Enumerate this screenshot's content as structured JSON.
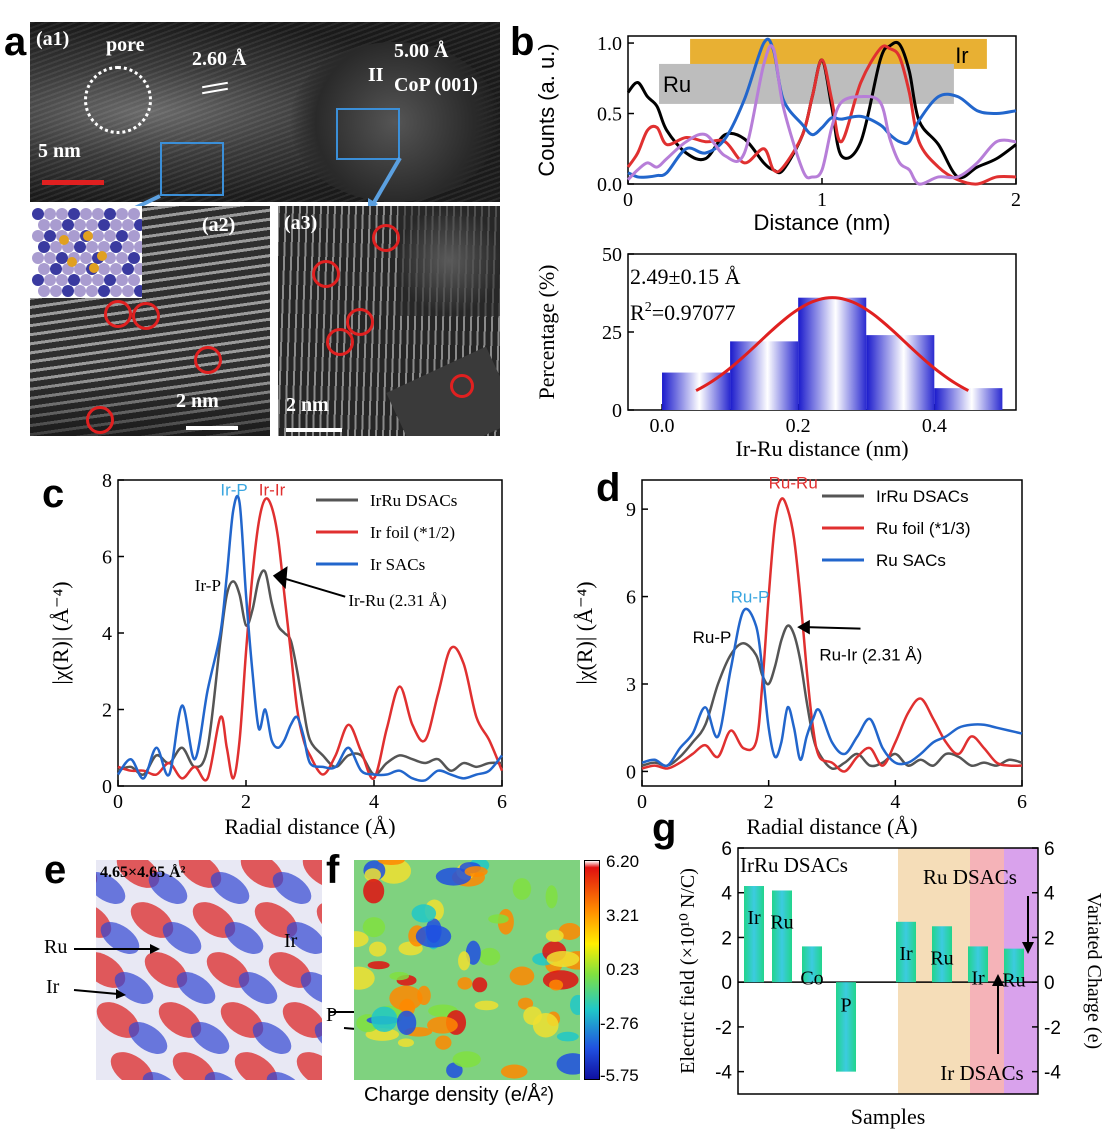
{
  "panel_labels": {
    "a": "a",
    "b": "b",
    "c": "c",
    "d": "d",
    "e": "e",
    "f": "f",
    "g": "g"
  },
  "panel_a": {
    "a1_label": "(a1)",
    "a2_label": "(a2)",
    "a3_label": "(a3)",
    "pore": "pore",
    "spacing1": "2.60 Å",
    "spacing2": "5.00 Å",
    "plane": "CoP (001)",
    "scale1": "5 nm",
    "scale2": "2 nm",
    "scale3": "2 nm",
    "spacing2_marker": "II"
  },
  "chart_data": [
    {
      "id": "b-top",
      "type": "line",
      "xlabel": "Distance (nm)",
      "ylabel": "Counts (a. u.)",
      "xlim": [
        0,
        2
      ],
      "ylim": [
        0,
        1.05
      ],
      "xticks": [
        "0",
        "1",
        "2"
      ],
      "yticks": [
        "0.0",
        "0.5",
        "1.0"
      ],
      "bars": [
        {
          "label": "Ir",
          "x0": 0.32,
          "x1": 1.85,
          "y": 0.93,
          "color": "#e8b033"
        },
        {
          "label": "Ru",
          "x0": 0.16,
          "x1": 1.68,
          "y": 0.71,
          "color": "#bdbdbd"
        }
      ],
      "series": [
        {
          "color": "#000000",
          "x": [
            0,
            0.05,
            0.1,
            0.15,
            0.2,
            0.3,
            0.4,
            0.5,
            0.6,
            0.7,
            0.75,
            0.8,
            0.9,
            0.95,
            1.0,
            1.05,
            1.1,
            1.2,
            1.3,
            1.35,
            1.4,
            1.45,
            1.5,
            1.6,
            1.7,
            1.8,
            1.9,
            2.0
          ],
          "y": [
            0.65,
            0.72,
            0.62,
            0.55,
            0.38,
            0.22,
            0.18,
            0.35,
            0.32,
            0.15,
            0.1,
            0.1,
            0.35,
            0.62,
            0.88,
            0.55,
            0.2,
            0.3,
            0.88,
            0.98,
            0.99,
            0.8,
            0.45,
            0.28,
            0.05,
            0.12,
            0.18,
            0.28
          ]
        },
        {
          "color": "#e03030",
          "x": [
            0,
            0.05,
            0.1,
            0.15,
            0.2,
            0.3,
            0.4,
            0.5,
            0.6,
            0.7,
            0.75,
            0.8,
            0.9,
            0.95,
            1.0,
            1.05,
            1.1,
            1.2,
            1.3,
            1.35,
            1.4,
            1.45,
            1.5,
            1.6,
            1.7,
            1.8,
            1.9,
            2.0
          ],
          "y": [
            0.12,
            0.22,
            0.38,
            0.4,
            0.28,
            0.33,
            0.3,
            0.3,
            0.15,
            0.25,
            0.1,
            0.12,
            0.35,
            0.62,
            0.88,
            0.6,
            0.3,
            0.72,
            0.96,
            0.96,
            0.9,
            0.65,
            0.3,
            0.12,
            0.03,
            0.0,
            0.05,
            0.05
          ]
        },
        {
          "color": "#2266cc",
          "x": [
            0,
            0.05,
            0.1,
            0.15,
            0.2,
            0.3,
            0.4,
            0.5,
            0.6,
            0.7,
            0.75,
            0.8,
            0.9,
            0.95,
            1.0,
            1.05,
            1.1,
            1.2,
            1.3,
            1.35,
            1.4,
            1.45,
            1.5,
            1.6,
            1.7,
            1.8,
            1.9,
            2.0
          ],
          "y": [
            0.08,
            0.05,
            0.05,
            0.06,
            0.08,
            0.25,
            0.22,
            0.32,
            0.6,
            1.0,
            0.95,
            0.6,
            0.42,
            0.35,
            0.4,
            0.47,
            0.46,
            0.48,
            0.42,
            0.35,
            0.3,
            0.3,
            0.45,
            0.62,
            0.62,
            0.52,
            0.5,
            0.52
          ]
        },
        {
          "color": "#b77ed8",
          "x": [
            0,
            0.05,
            0.1,
            0.15,
            0.2,
            0.3,
            0.4,
            0.5,
            0.6,
            0.7,
            0.75,
            0.8,
            0.9,
            0.95,
            1.0,
            1.05,
            1.1,
            1.2,
            1.3,
            1.35,
            1.4,
            1.45,
            1.5,
            1.6,
            1.7,
            1.8,
            1.9,
            2.0
          ],
          "y": [
            0.03,
            0.1,
            0.15,
            0.12,
            0.18,
            0.3,
            0.35,
            0.2,
            0.22,
            0.85,
            0.96,
            0.55,
            0.1,
            0.05,
            0.1,
            0.4,
            0.58,
            0.62,
            0.58,
            0.32,
            0.15,
            0.1,
            0.0,
            0.05,
            0.05,
            0.15,
            0.3,
            0.3
          ]
        }
      ]
    },
    {
      "id": "b-bottom",
      "type": "bar",
      "xlabel": "Ir-Ru distance (nm)",
      "ylabel": "Percentage (%)",
      "xlim": [
        -0.05,
        0.52
      ],
      "ylim": [
        0,
        50
      ],
      "xticks": [
        "0.0",
        "0.2",
        "0.4"
      ],
      "yticks": [
        "0",
        "25",
        "50"
      ],
      "annotation1": "2.49±0.15 Å",
      "annotation2_prefix": "R",
      "annotation2_sup": "2",
      "annotation2_suffix": "=0.97077",
      "bars": [
        {
          "x": 0.0,
          "y": 12
        },
        {
          "x": 0.1,
          "y": 22
        },
        {
          "x": 0.2,
          "y": 36
        },
        {
          "x": 0.3,
          "y": 24
        },
        {
          "x": 0.4,
          "y": 7
        }
      ],
      "bar_width": 0.1,
      "fit": {
        "mean": 0.25,
        "peak": 36,
        "sigma": 0.135,
        "from": 0.05,
        "to": 0.45,
        "color": "#e02020"
      }
    },
    {
      "id": "c",
      "type": "line",
      "xlabel": "Radial distance (Å)",
      "ylabel": "|χ(R)| (Å⁻⁴)",
      "xlim": [
        0,
        6
      ],
      "ylim": [
        0,
        8
      ],
      "xticks": [
        "0",
        "2",
        "4",
        "6"
      ],
      "yticks": [
        "0",
        "2",
        "4",
        "6",
        "8"
      ],
      "series": [
        {
          "name": "IrRu DSACs",
          "color": "#555555",
          "x": [
            0,
            0.2,
            0.4,
            0.6,
            0.8,
            1.0,
            1.2,
            1.4,
            1.6,
            1.7,
            1.8,
            1.9,
            2.0,
            2.1,
            2.2,
            2.3,
            2.4,
            2.5,
            2.6,
            2.7,
            2.8,
            2.9,
            3.0,
            3.2,
            3.4,
            3.6,
            3.8,
            4.0,
            4.2,
            4.4,
            4.6,
            4.8,
            5.0,
            5.2,
            5.4,
            5.6,
            5.8,
            6.0
          ],
          "y": [
            0.4,
            0.5,
            0.3,
            0.8,
            0.6,
            1.0,
            0.5,
            1.0,
            3.8,
            5.0,
            5.35,
            5.0,
            4.2,
            4.6,
            5.4,
            5.6,
            4.8,
            4.2,
            4.0,
            3.8,
            3.0,
            2.0,
            1.2,
            0.8,
            0.5,
            0.8,
            0.8,
            0.3,
            0.6,
            0.8,
            0.7,
            0.6,
            0.7,
            0.4,
            0.6,
            0.5,
            0.6,
            0.6
          ]
        },
        {
          "name": "Ir foil (*1/2)",
          "color": "#e03030",
          "x": [
            0,
            0.2,
            0.4,
            0.6,
            0.8,
            1.0,
            1.2,
            1.4,
            1.6,
            1.7,
            1.8,
            1.9,
            2.0,
            2.1,
            2.2,
            2.3,
            2.4,
            2.5,
            2.6,
            2.7,
            2.8,
            2.9,
            3.0,
            3.2,
            3.4,
            3.6,
            3.8,
            4.0,
            4.2,
            4.4,
            4.6,
            4.8,
            5.0,
            5.2,
            5.4,
            5.6,
            5.8,
            6.0
          ],
          "y": [
            0.5,
            0.4,
            0.4,
            0.3,
            0.6,
            0.2,
            0.5,
            0.2,
            1.8,
            1.0,
            0.2,
            1.2,
            3.5,
            5.5,
            6.9,
            7.5,
            7.3,
            6.5,
            5.0,
            3.5,
            2.0,
            1.2,
            0.8,
            0.3,
            0.8,
            1.6,
            0.9,
            0.2,
            1.5,
            2.6,
            1.6,
            1.2,
            2.4,
            3.6,
            3.2,
            1.8,
            1.2,
            0.4
          ]
        },
        {
          "name": "Ir SACs",
          "color": "#2266cc",
          "x": [
            0,
            0.2,
            0.4,
            0.6,
            0.8,
            1.0,
            1.2,
            1.4,
            1.6,
            1.7,
            1.8,
            1.9,
            2.0,
            2.1,
            2.2,
            2.3,
            2.4,
            2.5,
            2.6,
            2.7,
            2.8,
            2.9,
            3.0,
            3.2,
            3.4,
            3.6,
            3.8,
            4.0,
            4.2,
            4.4,
            4.6,
            4.8,
            5.0,
            5.2,
            5.4,
            5.6,
            5.8,
            6.0
          ],
          "y": [
            0.3,
            0.7,
            0.2,
            1.0,
            0.3,
            2.1,
            0.7,
            2.5,
            4.0,
            5.5,
            7.2,
            7.4,
            5.0,
            3.0,
            1.5,
            2.0,
            1.2,
            1.0,
            1.2,
            1.6,
            1.8,
            1.3,
            0.6,
            0.5,
            0.5,
            1.0,
            0.4,
            0.3,
            0.3,
            0.4,
            0.2,
            0.15,
            0.4,
            0.3,
            0.2,
            0.3,
            0.4,
            0.8
          ]
        }
      ],
      "annotations": {
        "ir_p_blue": "Ir-P",
        "ir_ir": "Ir-Ir",
        "ir_p_black": "Ir-P",
        "ir_ru": "Ir-Ru (2.31 Å)"
      }
    },
    {
      "id": "d",
      "type": "line",
      "xlabel": "Radial distance (Å)",
      "ylabel": "|χ(R)| (Å⁻⁴)",
      "xlim": [
        0,
        6
      ],
      "ylim": [
        -0.5,
        10
      ],
      "xticks": [
        "0",
        "2",
        "4",
        "6"
      ],
      "yticks": [
        "0",
        "3",
        "6",
        "9"
      ],
      "series": [
        {
          "name": "IrRu DSACs",
          "color": "#555555",
          "x": [
            0,
            0.2,
            0.4,
            0.6,
            0.8,
            1.0,
            1.2,
            1.4,
            1.6,
            1.8,
            1.9,
            2.0,
            2.1,
            2.2,
            2.3,
            2.4,
            2.5,
            2.6,
            2.7,
            2.8,
            3.0,
            3.2,
            3.4,
            3.6,
            3.8,
            4.0,
            4.2,
            4.4,
            4.6,
            4.8,
            5.0,
            5.2,
            5.4,
            5.6,
            5.8,
            6.0
          ],
          "y": [
            0.2,
            0.3,
            0.2,
            0.5,
            1.0,
            1.6,
            3.0,
            4.0,
            4.4,
            4.0,
            3.3,
            3.0,
            3.6,
            4.5,
            5.0,
            4.7,
            3.8,
            2.4,
            1.2,
            0.6,
            0.1,
            0.3,
            0.6,
            0.2,
            0.3,
            0.6,
            0.2,
            0.4,
            0.2,
            0.6,
            0.5,
            0.2,
            0.3,
            0.2,
            0.4,
            0.3
          ]
        },
        {
          "name": "Ru foil (*1/3)",
          "color": "#e03030",
          "x": [
            0,
            0.2,
            0.4,
            0.6,
            0.8,
            1.0,
            1.2,
            1.4,
            1.6,
            1.8,
            1.9,
            2.0,
            2.1,
            2.2,
            2.3,
            2.4,
            2.5,
            2.6,
            2.7,
            2.8,
            3.0,
            3.2,
            3.4,
            3.6,
            3.8,
            4.0,
            4.2,
            4.4,
            4.6,
            4.8,
            5.0,
            5.2,
            5.4,
            5.6,
            5.8,
            6.0
          ],
          "y": [
            0.1,
            0.2,
            0.1,
            0.3,
            0.6,
            0.9,
            0.5,
            1.4,
            0.8,
            1.0,
            3.0,
            6.0,
            8.5,
            9.35,
            9.0,
            8.0,
            6.0,
            3.5,
            1.5,
            0.5,
            0.3,
            0.0,
            0.5,
            0.8,
            0.2,
            1.0,
            2.0,
            2.5,
            1.8,
            1.0,
            0.6,
            1.2,
            0.8,
            0.3,
            0.2,
            0.2
          ]
        },
        {
          "name": "Ru SACs",
          "color": "#2266cc",
          "x": [
            0,
            0.2,
            0.4,
            0.6,
            0.8,
            1.0,
            1.2,
            1.4,
            1.6,
            1.8,
            1.9,
            2.0,
            2.1,
            2.2,
            2.3,
            2.4,
            2.5,
            2.6,
            2.7,
            2.8,
            3.0,
            3.2,
            3.4,
            3.6,
            3.8,
            4.0,
            4.2,
            4.4,
            4.6,
            4.8,
            5.0,
            5.2,
            5.4,
            5.6,
            5.8,
            6.0
          ],
          "y": [
            0.3,
            0.4,
            0.2,
            0.8,
            1.3,
            2.2,
            1.2,
            3.5,
            5.5,
            5.0,
            3.5,
            1.5,
            0.5,
            1.0,
            2.2,
            1.5,
            0.4,
            1.2,
            1.8,
            2.1,
            1.0,
            0.6,
            1.2,
            1.8,
            0.8,
            0.3,
            0.3,
            0.6,
            1.0,
            1.2,
            1.5,
            1.6,
            1.6,
            1.5,
            1.4,
            1.3
          ]
        }
      ],
      "annotations": {
        "ru_ru": "Ru-Ru",
        "ru_p_blue": "Ru-P",
        "ru_p_black": "Ru-P",
        "ru_ir": "Ru-Ir (2.31 Å)"
      }
    },
    {
      "id": "g",
      "type": "bar",
      "xlabel": "Samples",
      "ylabel": "Electric field (×10¹⁰ N/C)",
      "y2label": "Variated Charge (e)",
      "ylim": [
        -5,
        6
      ],
      "yticks": [
        "-4",
        "-2",
        "0",
        "2",
        "4",
        "6"
      ],
      "group_label": "IrRu DSACs",
      "ru_dsacs": "Ru DSACs",
      "ir_dsacs": "Ir DSACs",
      "bars": [
        {
          "label": "Ir",
          "value": 4.3
        },
        {
          "label": "Ru",
          "value": 4.1
        },
        {
          "label": "Co",
          "value": 1.6
        },
        {
          "label": "P",
          "value": -4.0
        },
        {
          "label": "Ir",
          "value": 2.7
        },
        {
          "label": "Ru",
          "value": 2.5
        },
        {
          "label": "Ir",
          "value": 1.6
        },
        {
          "label": "Ru",
          "value": 1.5
        }
      ],
      "bands": [
        {
          "color": "#f5ddb8"
        },
        {
          "color": "#f5b3b8"
        },
        {
          "color": "#d9a2ec"
        }
      ]
    }
  ],
  "panel_e": {
    "size": "4.65×4.65 Å²",
    "ru": "Ru",
    "ir1": "Ir",
    "ir2": "Ir"
  },
  "panel_f": {
    "p": "P",
    "xlabel": "Charge density (e/Å²)",
    "scale": [
      "6.20",
      "3.21",
      "0.23",
      "-2.76",
      "-5.75"
    ]
  }
}
